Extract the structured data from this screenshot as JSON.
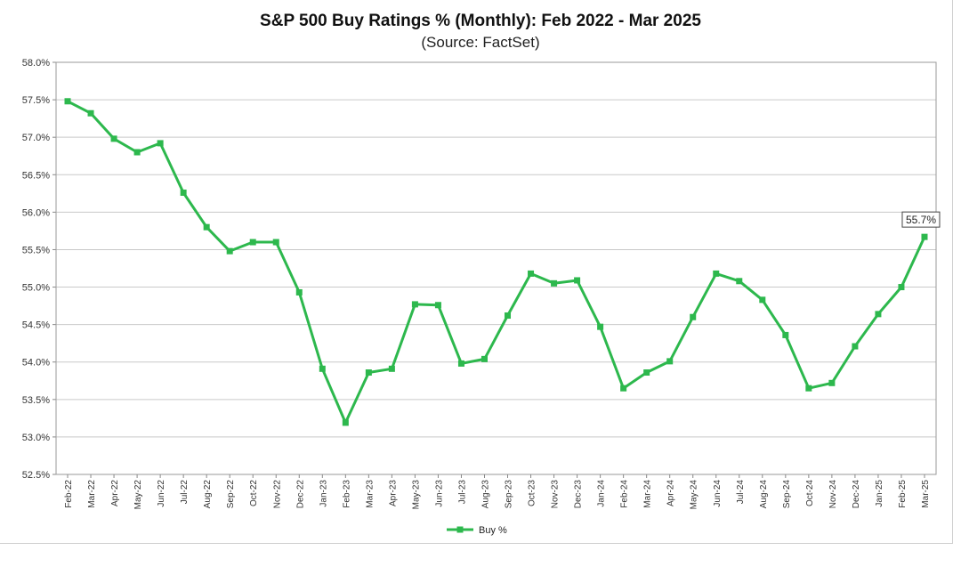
{
  "chart_data": {
    "type": "line",
    "title": "S&P 500 Buy Ratings % (Monthly): Feb 2022 - Mar 2025",
    "subtitle": "(Source: FactSet)",
    "xlabel": "",
    "ylabel": "",
    "ylim": [
      52.5,
      58.0
    ],
    "ytick_step": 0.5,
    "ytick_labels": [
      "52.5%",
      "53.0%",
      "53.5%",
      "54.0%",
      "54.5%",
      "55.0%",
      "55.5%",
      "56.0%",
      "56.5%",
      "57.0%",
      "57.5%",
      "58.0%"
    ],
    "grid": true,
    "legend_position": "bottom-center",
    "categories": [
      "Feb-22",
      "Mar-22",
      "Apr-22",
      "May-22",
      "Jun-22",
      "Jul-22",
      "Aug-22",
      "Sep-22",
      "Oct-22",
      "Nov-22",
      "Dec-22",
      "Jan-23",
      "Feb-23",
      "Mar-23",
      "Apr-23",
      "May-23",
      "Jun-23",
      "Jul-23",
      "Aug-23",
      "Sep-23",
      "Oct-23",
      "Nov-23",
      "Dec-23",
      "Jan-24",
      "Feb-24",
      "Mar-24",
      "Apr-24",
      "May-24",
      "Jun-24",
      "Jul-24",
      "Aug-24",
      "Sep-24",
      "Oct-24",
      "Nov-24",
      "Dec-24",
      "Jan-25",
      "Feb-25",
      "Mar-25"
    ],
    "series": [
      {
        "name": "Buy %",
        "color": "#2db84d",
        "values": [
          57.48,
          57.32,
          56.98,
          56.8,
          56.92,
          56.26,
          55.8,
          55.48,
          55.6,
          55.6,
          54.93,
          53.91,
          53.19,
          53.86,
          53.91,
          54.77,
          54.76,
          53.98,
          54.04,
          54.62,
          55.18,
          55.05,
          55.09,
          54.47,
          53.65,
          53.86,
          54.01,
          54.6,
          55.18,
          55.08,
          54.83,
          54.36,
          53.65,
          53.72,
          54.21,
          54.64,
          55.0,
          55.67
        ]
      }
    ],
    "annotation": {
      "label": "55.7%",
      "index": 37
    }
  }
}
